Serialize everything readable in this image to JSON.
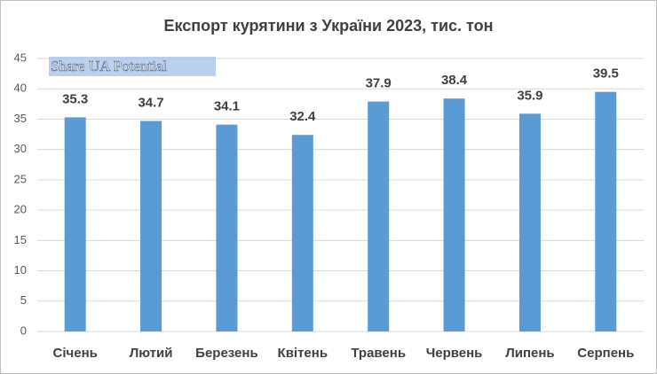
{
  "chart_data": {
    "type": "bar",
    "title": "Експорт курятини з України 2023, тис. тон",
    "watermark": "Share UA Potential",
    "categories": [
      "Січень",
      "Лютий",
      "Березень",
      "Квітень",
      "Травень",
      "Червень",
      "Липень",
      "Серпень"
    ],
    "values": [
      35.3,
      34.7,
      34.1,
      32.4,
      37.9,
      38.4,
      35.9,
      39.5
    ],
    "color": "#5b9bd5",
    "ylim": [
      0,
      45
    ],
    "yticks": [
      0,
      5,
      10,
      15,
      20,
      25,
      30,
      35,
      40,
      45
    ],
    "grid": true
  }
}
